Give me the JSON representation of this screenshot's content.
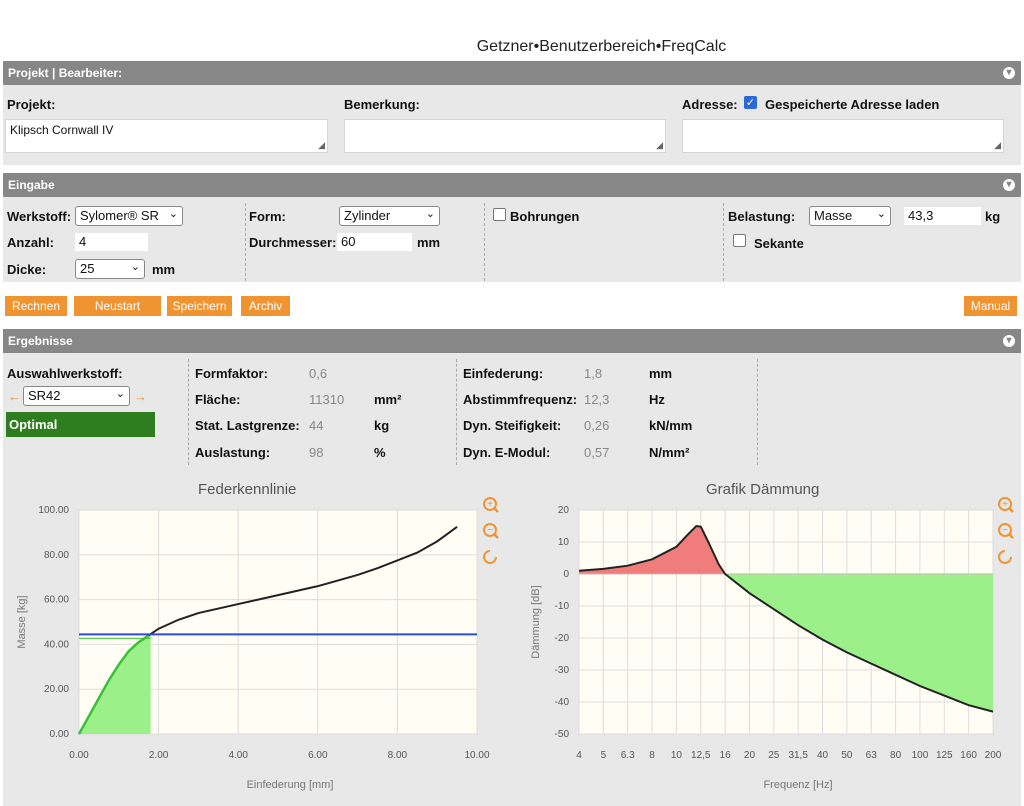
{
  "title": "Getzner•Benutzerbereich•FreqCalc",
  "project_section": {
    "header": "Projekt | Bearbeiter:",
    "project_label": "Projekt:",
    "project_value": "Klipsch Cornwall IV",
    "remark_label": "Bemerkung:",
    "remark_value": "",
    "address_label": "Adresse:",
    "address_checkbox_label": "Gespeicherte Adresse laden",
    "address_checked": true,
    "address_value": ""
  },
  "input_section": {
    "header": "Eingabe",
    "material_label": "Werkstoff:",
    "material_value": "Sylomer® SR",
    "count_label": "Anzahl:",
    "count_value": "4",
    "thickness_label": "Dicke:",
    "thickness_value": "25",
    "thickness_unit": "mm",
    "form_label": "Form:",
    "form_value": "Zylinder",
    "diameter_label": "Durchmesser:",
    "diameter_value": "60",
    "diameter_unit": "mm",
    "holes_label": "Bohrungen",
    "load_label": "Belastung:",
    "load_type": "Masse",
    "load_value": "43,3",
    "load_unit": "kg",
    "secant_label": "Sekante"
  },
  "actions": {
    "calc": "Rechnen",
    "restart": "Neustart",
    "save": "Speichern",
    "archive": "Archiv",
    "manual": "Manual"
  },
  "results_section": {
    "header": "Ergebnisse",
    "choice_label": "Auswahlwerkstoff:",
    "choice_value": "SR42",
    "arrow_left": "←",
    "arrow_right": "→",
    "status": "Optimal",
    "status_color": "#2e7d1f",
    "col1": [
      {
        "label": "Formfaktor:",
        "value": "0,6",
        "unit": ""
      },
      {
        "label": "Fläche:",
        "value": "11310",
        "unit": "mm²"
      },
      {
        "label": "Stat. Lastgrenze:",
        "value": "44",
        "unit": "kg"
      },
      {
        "label": "Auslastung:",
        "value": "98",
        "unit": "%"
      }
    ],
    "col2": [
      {
        "label": "Einfederung:",
        "value": "1,8",
        "unit": "mm"
      },
      {
        "label": "Abstimmfrequenz:",
        "value": "12,3",
        "unit": "Hz"
      },
      {
        "label": "Dyn. Steifigkeit:",
        "value": "0,26",
        "unit": "kN/mm"
      },
      {
        "label": "Dyn. E-Modul:",
        "value": "0,57",
        "unit": "N/mm²"
      }
    ]
  },
  "chart_data": [
    {
      "type": "line",
      "title": "Federkennlinie",
      "xlabel": "Einfederung [mm]",
      "ylabel": "Masse [kg]",
      "xlim": [
        0,
        10
      ],
      "ylim": [
        0,
        100
      ],
      "xticks": [
        "0.00",
        "2.00",
        "4.00",
        "6.00",
        "8.00",
        "10.00"
      ],
      "yticks": [
        "0.00",
        "20.00",
        "40.00",
        "60.00",
        "80.00",
        "100.00"
      ],
      "series": [
        {
          "x": [
            0,
            0.25,
            0.5,
            0.75,
            1.0,
            1.25,
            1.5,
            1.75,
            2.0,
            2.5,
            3.0,
            3.5,
            4.0,
            4.5,
            5.0,
            5.5,
            6.0,
            6.5,
            7.0,
            7.5,
            8.0,
            8.5,
            9.0,
            9.5
          ],
          "y": [
            0,
            8,
            16,
            24,
            31,
            37,
            41,
            44,
            47,
            51,
            54,
            56,
            58,
            60,
            62,
            64,
            66,
            68.5,
            71,
            74,
            77.5,
            81,
            86,
            92.5
          ],
          "color": "#222222"
        }
      ],
      "load_line": 44.5,
      "load_line_color": "#2f4bd8",
      "fill_region": {
        "x_max": 1.8,
        "color": "#9bf08a"
      },
      "grid": true
    },
    {
      "type": "line",
      "title": "Grafik Dämmung",
      "xlabel": "Frequenz [Hz]",
      "ylabel": "Dämmung [dB]",
      "ylim": [
        -50,
        20
      ],
      "xticks": [
        "4",
        "5",
        "6.3",
        "8",
        "10",
        "12,5",
        "16",
        "20",
        "25",
        "31,5",
        "40",
        "50",
        "63",
        "80",
        "100",
        "125",
        "160",
        "200"
      ],
      "yticks": [
        "20",
        "10",
        "0",
        "-10",
        "-20",
        "-30",
        "-40",
        "-50"
      ],
      "series": [
        {
          "x": [
            4,
            5,
            6.3,
            8,
            10,
            11,
            12,
            12.5,
            13.5,
            15,
            16,
            20,
            25,
            31.5,
            40,
            50,
            63,
            80,
            100,
            125,
            160,
            200
          ],
          "y": [
            1,
            1.6,
            2.6,
            4.6,
            8.5,
            12,
            15,
            14.8,
            10,
            3,
            0,
            -6,
            -11,
            -16,
            -20.5,
            -24.5,
            -28,
            -31.5,
            -35,
            -38,
            -41,
            -43
          ],
          "color": "#222222"
        }
      ],
      "positive_fill_color": "#f07c7c",
      "negative_fill_color": "#9bf08a",
      "grid": true
    }
  ],
  "icons": {
    "zoom_in": "zoom-in-icon",
    "zoom_out": "zoom-out-icon",
    "reset": "reset-icon",
    "accent": "#f09432"
  }
}
